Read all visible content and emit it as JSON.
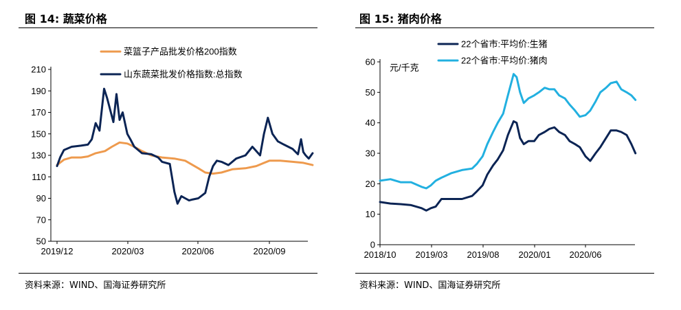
{
  "left_panel": {
    "title": "图 14:  蔬菜价格",
    "source": "资料来源：WIND、国海证券研究所"
  },
  "right_panel": {
    "title": "图 15:  猪肉价格",
    "source": "资料来源：WIND、国海证券研究所"
  },
  "colors": {
    "orange": "#EE9A4D",
    "navy": "#0B2454",
    "cyan": "#22B0E0"
  },
  "chart_data": [
    {
      "type": "line",
      "x_ticks": [
        "2019/12",
        "2020/03",
        "2020/06",
        "2020/09"
      ],
      "y_ticks": [
        50,
        70,
        90,
        110,
        130,
        150,
        170,
        190,
        210
      ],
      "ylim": [
        50,
        210
      ],
      "legend_position": "top",
      "series": [
        {
          "name": "菜篮子产品批发价格200指数",
          "color": "#EE9A4D",
          "x": [
            "2019-12-01",
            "2019-12-10",
            "2019-12-20",
            "2020-01-01",
            "2020-01-10",
            "2020-01-20",
            "2020-02-01",
            "2020-02-10",
            "2020-02-20",
            "2020-03-01",
            "2020-03-10",
            "2020-03-20",
            "2020-04-01",
            "2020-04-15",
            "2020-05-01",
            "2020-05-15",
            "2020-06-01",
            "2020-06-10",
            "2020-06-20",
            "2020-07-01",
            "2020-07-15",
            "2020-08-01",
            "2020-08-15",
            "2020-09-01",
            "2020-09-15",
            "2020-10-01",
            "2020-10-15",
            "2020-10-27"
          ],
          "y": [
            121,
            126,
            128,
            128,
            129,
            132,
            134,
            138,
            142,
            141,
            138,
            134,
            130,
            128,
            127,
            125,
            118,
            114,
            113,
            114,
            117,
            118,
            120,
            125,
            125,
            124,
            123,
            121
          ]
        },
        {
          "name": "山东蔬菜批发价格指数:总指数",
          "color": "#0B2454",
          "x": [
            "2019-12-01",
            "2019-12-05",
            "2019-12-10",
            "2019-12-20",
            "2020-01-01",
            "2020-01-10",
            "2020-01-15",
            "2020-01-20",
            "2020-01-25",
            "2020-01-31",
            "2020-02-04",
            "2020-02-08",
            "2020-02-12",
            "2020-02-16",
            "2020-02-20",
            "2020-02-24",
            "2020-03-01",
            "2020-03-05",
            "2020-03-10",
            "2020-03-20",
            "2020-04-01",
            "2020-04-10",
            "2020-04-15",
            "2020-04-25",
            "2020-05-01",
            "2020-05-05",
            "2020-05-10",
            "2020-05-15",
            "2020-05-20",
            "2020-05-25",
            "2020-06-01",
            "2020-06-10",
            "2020-06-15",
            "2020-06-20",
            "2020-06-25",
            "2020-07-01",
            "2020-07-10",
            "2020-07-20",
            "2020-08-01",
            "2020-08-10",
            "2020-08-20",
            "2020-08-25",
            "2020-08-30",
            "2020-09-05",
            "2020-09-12",
            "2020-09-20",
            "2020-10-01",
            "2020-10-08",
            "2020-10-12",
            "2020-10-15",
            "2020-10-18",
            "2020-10-22",
            "2020-10-27"
          ],
          "y": [
            120,
            128,
            135,
            138,
            139,
            140,
            145,
            160,
            153,
            192,
            183,
            172,
            161,
            187,
            163,
            170,
            150,
            145,
            138,
            132,
            131,
            128,
            124,
            122,
            96,
            85,
            92,
            90,
            88,
            89,
            90,
            95,
            110,
            120,
            125,
            124,
            121,
            127,
            130,
            138,
            130,
            150,
            165,
            150,
            143,
            140,
            136,
            131,
            145,
            133,
            130,
            127,
            132
          ]
        }
      ]
    },
    {
      "type": "line",
      "x_ticks": [
        "2018/10",
        "2019/03",
        "2019/08",
        "2020/01",
        "2020/06"
      ],
      "y_ticks": [
        0,
        10,
        20,
        30,
        40,
        50,
        60
      ],
      "ylim": [
        0,
        60
      ],
      "unit_label": "元/千克",
      "legend_position": "top",
      "series": [
        {
          "name": "22个省市:平均价:生猪",
          "color": "#0B2454",
          "x": [
            "2018-10-01",
            "2018-11-01",
            "2018-12-01",
            "2019-01-01",
            "2019-02-01",
            "2019-02-15",
            "2019-03-01",
            "2019-03-15",
            "2019-04-01",
            "2019-05-01",
            "2019-06-01",
            "2019-07-01",
            "2019-07-15",
            "2019-08-01",
            "2019-08-15",
            "2019-09-01",
            "2019-09-15",
            "2019-10-01",
            "2019-10-15",
            "2019-11-01",
            "2019-11-10",
            "2019-11-20",
            "2019-12-01",
            "2019-12-15",
            "2020-01-01",
            "2020-01-15",
            "2020-02-01",
            "2020-02-15",
            "2020-03-01",
            "2020-03-15",
            "2020-04-01",
            "2020-04-15",
            "2020-05-01",
            "2020-05-15",
            "2020-06-01",
            "2020-06-15",
            "2020-07-01",
            "2020-07-15",
            "2020-08-01",
            "2020-08-15",
            "2020-09-01",
            "2020-09-15",
            "2020-10-01",
            "2020-10-15",
            "2020-10-27"
          ],
          "y": [
            14,
            13.5,
            13.3,
            13,
            12,
            11.2,
            12,
            12.5,
            15,
            15,
            15,
            16,
            17.5,
            19.5,
            23,
            26,
            28,
            31,
            36,
            40.5,
            40,
            35,
            33,
            34,
            34,
            36,
            37,
            38,
            38.5,
            37,
            36,
            34,
            33,
            32,
            29,
            27.5,
            30,
            32,
            35,
            37.5,
            37.5,
            37,
            36,
            33,
            30
          ]
        },
        {
          "name": "22个省市:平均价:猪肉",
          "color": "#22B0E0",
          "x": [
            "2018-10-01",
            "2018-11-01",
            "2018-12-01",
            "2019-01-01",
            "2019-02-01",
            "2019-02-15",
            "2019-03-01",
            "2019-03-15",
            "2019-04-01",
            "2019-05-01",
            "2019-06-01",
            "2019-07-01",
            "2019-07-15",
            "2019-08-01",
            "2019-08-15",
            "2019-09-01",
            "2019-09-15",
            "2019-10-01",
            "2019-10-15",
            "2019-11-01",
            "2019-11-10",
            "2019-11-20",
            "2019-12-01",
            "2019-12-15",
            "2020-01-01",
            "2020-01-15",
            "2020-02-01",
            "2020-02-15",
            "2020-03-01",
            "2020-03-15",
            "2020-04-01",
            "2020-04-15",
            "2020-05-01",
            "2020-05-15",
            "2020-06-01",
            "2020-06-15",
            "2020-07-01",
            "2020-07-15",
            "2020-08-01",
            "2020-08-15",
            "2020-09-01",
            "2020-09-15",
            "2020-10-01",
            "2020-10-15",
            "2020-10-27"
          ],
          "y": [
            21,
            21.5,
            20.5,
            20.5,
            19,
            18.5,
            19.5,
            21,
            22,
            23.5,
            24.5,
            25,
            26.5,
            29,
            33,
            37,
            40,
            43,
            49,
            56,
            55,
            50,
            46.5,
            48,
            49,
            50,
            51.5,
            51,
            51,
            49,
            48,
            46,
            44,
            42,
            42.5,
            44,
            47,
            50,
            51.5,
            53,
            53.5,
            51,
            50,
            49,
            47.5
          ]
        }
      ]
    }
  ]
}
